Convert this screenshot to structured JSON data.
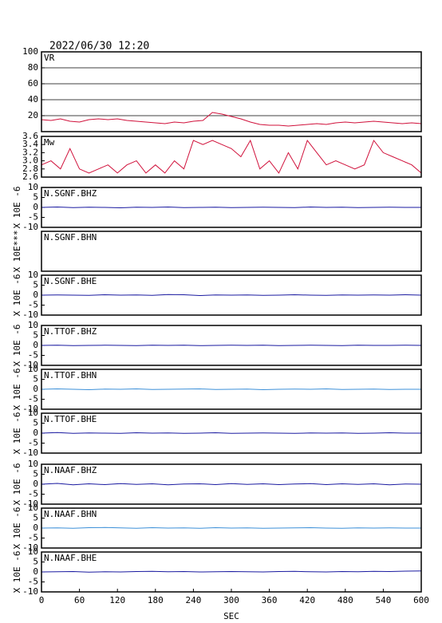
{
  "page": {
    "title": "2022/06/30 12:20",
    "xlabel": "SEC",
    "xlim": [
      0,
      600
    ],
    "xticks": [
      0,
      60,
      120,
      180,
      240,
      300,
      360,
      420,
      480,
      540,
      600
    ]
  },
  "chart_data": [
    {
      "type": "line",
      "label": "VR",
      "grid": true,
      "ylim": [
        0,
        100
      ],
      "yticks": [
        20,
        40,
        60,
        80,
        100
      ],
      "x": [
        0,
        15,
        30,
        45,
        60,
        75,
        90,
        105,
        120,
        135,
        150,
        165,
        180,
        195,
        210,
        225,
        240,
        255,
        270,
        285,
        300,
        315,
        330,
        345,
        360,
        375,
        390,
        405,
        420,
        435,
        450,
        465,
        480,
        495,
        510,
        525,
        540,
        555,
        570,
        585,
        600
      ],
      "series": [
        {
          "color": "#d0103a",
          "values": [
            15,
            14,
            16,
            13,
            12,
            15,
            16,
            15,
            16,
            14,
            13,
            12,
            11,
            10,
            12,
            11,
            13,
            14,
            24,
            22,
            19,
            16,
            12,
            9,
            8,
            8,
            7,
            8,
            9,
            10,
            9,
            11,
            12,
            11,
            12,
            13,
            12,
            11,
            10,
            11,
            10
          ]
        }
      ]
    },
    {
      "type": "line",
      "label": "Mw",
      "ylim": [
        2.6,
        3.6
      ],
      "yticks": [
        2.6,
        2.8,
        {
          "value": 3,
          "label": "3.0"
        },
        3.2,
        3.4,
        3.6
      ],
      "x": [
        0,
        15,
        30,
        45,
        60,
        75,
        90,
        105,
        120,
        135,
        150,
        165,
        180,
        195,
        210,
        225,
        240,
        255,
        270,
        285,
        300,
        315,
        330,
        345,
        360,
        375,
        390,
        405,
        420,
        435,
        450,
        465,
        480,
        495,
        510,
        525,
        540,
        555,
        570,
        585,
        600
      ],
      "series": [
        {
          "color": "#d0103a",
          "values": [
            2.9,
            3.0,
            2.8,
            3.3,
            2.8,
            2.7,
            2.8,
            2.9,
            2.7,
            2.9,
            3.0,
            2.7,
            2.9,
            2.7,
            3.0,
            2.8,
            3.5,
            3.4,
            3.5,
            3.4,
            3.3,
            3.1,
            3.5,
            2.8,
            3.0,
            2.7,
            3.2,
            2.8,
            3.5,
            3.2,
            2.9,
            3.0,
            2.9,
            2.8,
            2.9,
            3.5,
            3.2,
            3.1,
            3.0,
            2.9,
            2.7
          ]
        }
      ]
    },
    {
      "type": "line",
      "label": "N.SGNF.BHZ",
      "ylabel": "X 10E -6",
      "ylim": [
        -10,
        10
      ],
      "yticks": [
        -10,
        -5,
        0,
        5,
        10
      ],
      "x": [
        0,
        25,
        50,
        75,
        100,
        125,
        150,
        175,
        200,
        225,
        250,
        275,
        300,
        325,
        350,
        375,
        400,
        425,
        450,
        475,
        500,
        525,
        550,
        575,
        600
      ],
      "series": [
        {
          "color": "#1a1aa0",
          "values": [
            0,
            0.2,
            -0.1,
            0.1,
            0,
            -0.2,
            0.1,
            0,
            0.2,
            -0.1,
            0,
            0.1,
            -0.1,
            0,
            0.1,
            0,
            -0.1,
            0.2,
            0,
            0.1,
            -0.1,
            0,
            0.1,
            0,
            0
          ]
        }
      ]
    },
    {
      "type": "line",
      "label": "N.SGNF.BHN",
      "ylabel": "X 10E***"
    },
    {
      "type": "line",
      "label": "N.SGNF.BHE",
      "ylabel": "X 10E -6",
      "ylim": [
        -10,
        10
      ],
      "yticks": [
        -10,
        -5,
        0,
        5,
        10
      ],
      "x": [
        0,
        25,
        50,
        75,
        100,
        125,
        150,
        175,
        200,
        225,
        250,
        275,
        300,
        325,
        350,
        375,
        400,
        425,
        450,
        475,
        500,
        525,
        550,
        575,
        600
      ],
      "series": [
        {
          "color": "#1a1aa0",
          "values": [
            0,
            0.1,
            0,
            -0.1,
            0.2,
            0,
            0.1,
            -0.1,
            0.3,
            0.2,
            -0.2,
            0.1,
            0,
            0.1,
            -0.1,
            0,
            0.2,
            0,
            -0.1,
            0.1,
            0,
            0.1,
            0,
            0.2,
            0
          ]
        }
      ]
    },
    {
      "type": "line",
      "label": "N.TTOF.BHZ",
      "ylabel": "X 10E -6",
      "ylim": [
        -10,
        10
      ],
      "yticks": [
        -10,
        -5,
        0,
        5,
        10
      ],
      "x": [
        0,
        25,
        50,
        75,
        100,
        125,
        150,
        175,
        200,
        225,
        250,
        275,
        300,
        325,
        350,
        375,
        400,
        425,
        450,
        475,
        500,
        525,
        550,
        575,
        600
      ],
      "series": [
        {
          "color": "#1a1aa0",
          "values": [
            0,
            0.1,
            -0.1,
            0,
            0.1,
            0,
            -0.1,
            0.1,
            0,
            0.1,
            -0.1,
            0,
            0.1,
            0,
            0.1,
            -0.1,
            0,
            0.1,
            0,
            -0.1,
            0.1,
            0,
            0,
            0.1,
            0
          ]
        }
      ]
    },
    {
      "type": "line",
      "label": "N.TTOF.BHN",
      "ylabel": "X 10E -6",
      "ylim": [
        -10,
        10
      ],
      "yticks": [
        -10,
        -5,
        0,
        5,
        10
      ],
      "x": [
        0,
        25,
        50,
        75,
        100,
        125,
        150,
        175,
        200,
        225,
        250,
        275,
        300,
        325,
        350,
        375,
        400,
        425,
        450,
        475,
        500,
        525,
        550,
        575,
        600
      ],
      "series": [
        {
          "color": "#3b8fd8",
          "values": [
            0,
            0.2,
            0,
            -0.2,
            0.1,
            0,
            0.2,
            -0.1,
            0,
            0.1,
            0.2,
            -0.1,
            0,
            0.1,
            -0.2,
            0,
            0.1,
            0,
            0.2,
            -0.1,
            0,
            0.1,
            -0.1,
            0,
            0
          ]
        }
      ]
    },
    {
      "type": "line",
      "label": "N.TTOF.BHE",
      "ylabel": "X 10E -6",
      "ylim": [
        -10,
        10
      ],
      "yticks": [
        -10,
        -5,
        0,
        5,
        10
      ],
      "x": [
        0,
        25,
        50,
        75,
        100,
        125,
        150,
        175,
        200,
        225,
        250,
        275,
        300,
        325,
        350,
        375,
        400,
        425,
        450,
        475,
        500,
        525,
        550,
        575,
        600
      ],
      "series": [
        {
          "color": "#1a1aa0",
          "values": [
            0,
            0.3,
            -0.1,
            0.1,
            0,
            -0.1,
            0.2,
            0,
            0.1,
            -0.1,
            0,
            0.2,
            -0.1,
            0,
            0.1,
            0,
            -0.1,
            0.1,
            0,
            0.1,
            -0.1,
            0,
            0.2,
            0,
            0
          ]
        }
      ]
    },
    {
      "type": "line",
      "label": "N.NAAF.BHZ",
      "ylabel": "X 10E -6",
      "ylim": [
        -10,
        10
      ],
      "yticks": [
        -10,
        -5,
        0,
        5,
        10
      ],
      "x": [
        0,
        25,
        50,
        75,
        100,
        125,
        150,
        175,
        200,
        225,
        250,
        275,
        300,
        325,
        350,
        375,
        400,
        425,
        450,
        475,
        500,
        525,
        550,
        575,
        600
      ],
      "series": [
        {
          "color": "#1a1aa0",
          "values": [
            0,
            0.4,
            -0.3,
            0.2,
            -0.2,
            0.3,
            -0.1,
            0.2,
            -0.3,
            0.1,
            0.2,
            -0.2,
            0.3,
            -0.1,
            0.2,
            -0.2,
            0.1,
            0.3,
            -0.2,
            0.2,
            -0.1,
            0.2,
            -0.3,
            0.1,
            0
          ]
        }
      ]
    },
    {
      "type": "line",
      "label": "N.NAAF.BHN",
      "ylabel": "X 10E -6",
      "ylim": [
        -10,
        10
      ],
      "yticks": [
        -10,
        -5,
        0,
        5,
        10
      ],
      "x": [
        0,
        25,
        50,
        75,
        100,
        125,
        150,
        175,
        200,
        225,
        250,
        275,
        300,
        325,
        350,
        375,
        400,
        425,
        450,
        475,
        500,
        525,
        550,
        575,
        600
      ],
      "series": [
        {
          "color": "#3b8fd8",
          "values": [
            0,
            0.1,
            -0.1,
            0.2,
            0.3,
            0.1,
            -0.1,
            0.2,
            0,
            0.1,
            -0.1,
            0.2,
            0,
            0.1,
            -0.1,
            0,
            0.1,
            0.2,
            0,
            -0.1,
            0.1,
            0,
            0.1,
            0,
            0
          ]
        }
      ]
    },
    {
      "type": "line",
      "label": "N.NAAF.BHE",
      "ylabel": "X 10E -6",
      "ylim": [
        -10,
        10
      ],
      "yticks": [
        -10,
        -5,
        0,
        5,
        10
      ],
      "x": [
        0,
        25,
        50,
        75,
        100,
        125,
        150,
        175,
        200,
        225,
        250,
        275,
        300,
        325,
        350,
        375,
        400,
        425,
        450,
        475,
        500,
        525,
        550,
        575,
        600
      ],
      "series": [
        {
          "color": "#1a1aa0",
          "values": [
            0,
            0.1,
            0.2,
            -0.1,
            0.1,
            0,
            0.2,
            0.3,
            0.1,
            0.2,
            0,
            0.1,
            0.2,
            0.1,
            0,
            0.2,
            0.3,
            0.1,
            0,
            0.2,
            0.1,
            0.3,
            0.2,
            0.4,
            0.5
          ]
        }
      ]
    }
  ]
}
